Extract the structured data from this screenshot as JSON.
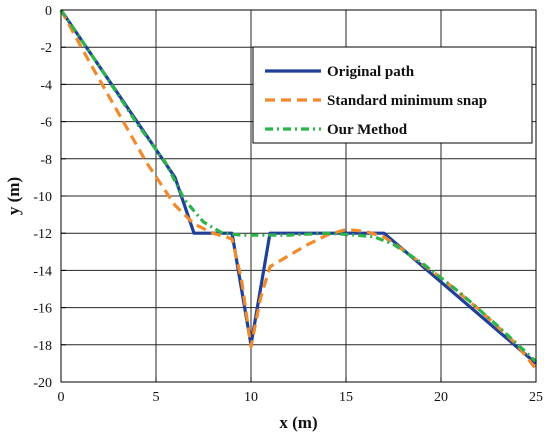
{
  "chart_data": {
    "type": "line",
    "xlabel": "x (m)",
    "ylabel": "y (m)",
    "xlim": [
      0,
      25
    ],
    "ylim": [
      -20,
      0
    ],
    "xticks": [
      0,
      5,
      10,
      15,
      20,
      25
    ],
    "yticks": [
      0,
      -2,
      -4,
      -6,
      -8,
      -10,
      -12,
      -14,
      -16,
      -18,
      -20
    ],
    "grid": true,
    "legend_position": "top-right",
    "series": [
      {
        "name": "Original path",
        "color": "#1f3f99",
        "style": "solid",
        "x": [
          0,
          5,
          6,
          7,
          9,
          10,
          11,
          17,
          25
        ],
        "y": [
          0,
          -7.5,
          -9,
          -12,
          -12,
          -18,
          -12,
          -12,
          -19
        ]
      },
      {
        "name": "Standard minimum snap",
        "color": "#f08a2c",
        "style": "dashed",
        "x": [
          0,
          1.5,
          3,
          4.5,
          6,
          7,
          8,
          9,
          9.5,
          10,
          10.5,
          11,
          12,
          13,
          14,
          15,
          16,
          17,
          18,
          20,
          22,
          24,
          25
        ],
        "y": [
          0,
          -2.8,
          -5.5,
          -8.2,
          -10.5,
          -11.5,
          -12,
          -12.3,
          -14.5,
          -18.1,
          -15.5,
          -13.8,
          -13.2,
          -12.6,
          -12.1,
          -11.8,
          -11.9,
          -12.2,
          -12.9,
          -14.4,
          -16.1,
          -18.0,
          -19.3
        ]
      },
      {
        "name": "Our Method",
        "color": "#2db34a",
        "style": "dashdot",
        "x": [
          0,
          2,
          4,
          5.5,
          6.5,
          7.5,
          8.5,
          9.5,
          10.5,
          12,
          14,
          15.5,
          16.5,
          17.5,
          19,
          21,
          23,
          25
        ],
        "y": [
          0,
          -3,
          -6.1,
          -8.2,
          -10.2,
          -11.4,
          -12,
          -12.1,
          -12.1,
          -12.1,
          -12,
          -12.1,
          -12.2,
          -12.6,
          -13.6,
          -15.2,
          -17.0,
          -18.9
        ]
      }
    ]
  }
}
